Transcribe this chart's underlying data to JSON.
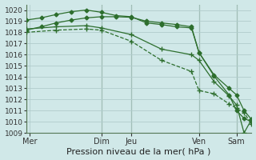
{
  "xlabel": "Pression niveau de la mer( hPa )",
  "bg_color": "#d0e8e8",
  "grid_color": "#b0cccc",
  "line_color": "#2d6e2d",
  "xlim": [
    0,
    60
  ],
  "ylim": [
    1009,
    1020.5
  ],
  "yticks": [
    1009,
    1010,
    1011,
    1012,
    1013,
    1014,
    1015,
    1016,
    1017,
    1018,
    1019,
    1020
  ],
  "vlines": [
    0,
    20,
    28,
    46,
    56
  ],
  "xtick_positions": [
    1,
    20,
    28,
    46,
    56
  ],
  "xtick_labels": [
    "Mer",
    "Dim",
    "Jeu",
    "Ven",
    "Sam"
  ],
  "series": [
    {
      "x": [
        0,
        4,
        8,
        12,
        16,
        20,
        24,
        28,
        32,
        36,
        40,
        44,
        46,
        50,
        54,
        56,
        58,
        60
      ],
      "y": [
        1019.1,
        1019.3,
        1019.6,
        1019.85,
        1020.0,
        1019.8,
        1019.5,
        1019.4,
        1018.85,
        1018.7,
        1018.5,
        1018.4,
        1016.2,
        1014.2,
        1013.0,
        1012.4,
        1011.0,
        1010.2
      ],
      "marker": "D",
      "markersize": 2.5,
      "linestyle": "-"
    },
    {
      "x": [
        0,
        4,
        8,
        12,
        16,
        20,
        24,
        28,
        32,
        36,
        40,
        44,
        46,
        50,
        54,
        56,
        58,
        60
      ],
      "y": [
        1018.2,
        1018.5,
        1018.85,
        1019.1,
        1019.3,
        1019.4,
        1019.4,
        1019.35,
        1019.0,
        1018.85,
        1018.7,
        1018.5,
        1016.2,
        1014.1,
        1012.4,
        1011.0,
        1010.3,
        1010.0
      ],
      "marker": "D",
      "markersize": 2.5,
      "linestyle": "-"
    },
    {
      "x": [
        0,
        8,
        16,
        20,
        28,
        36,
        44,
        46,
        50,
        54,
        56,
        58,
        60
      ],
      "y": [
        1018.3,
        1018.5,
        1018.6,
        1018.4,
        1017.8,
        1016.5,
        1016.0,
        1015.5,
        1013.6,
        1012.3,
        1011.5,
        1009.0,
        1010.2
      ],
      "marker": "+",
      "markersize": 5,
      "linestyle": "-"
    },
    {
      "x": [
        0,
        8,
        16,
        20,
        28,
        36,
        44,
        46,
        50,
        54,
        56,
        58,
        60
      ],
      "y": [
        1018.0,
        1018.2,
        1018.3,
        1018.2,
        1017.2,
        1015.5,
        1014.5,
        1012.8,
        1012.5,
        1011.6,
        1011.2,
        1010.8,
        1009.8
      ],
      "marker": "+",
      "markersize": 5,
      "linestyle": "--"
    }
  ]
}
